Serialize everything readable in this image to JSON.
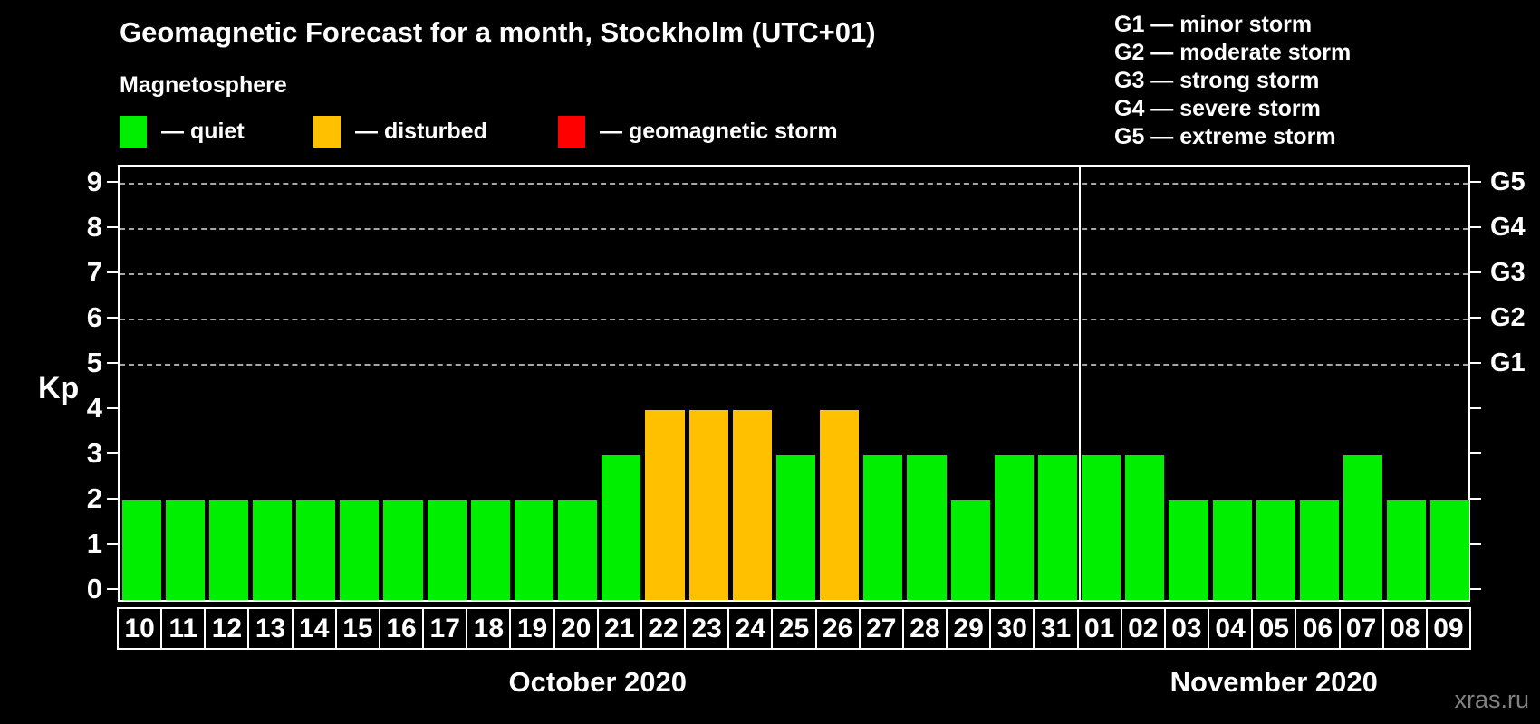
{
  "header": {
    "title": "Geomagnetic Forecast for a month, Stockholm (UTC+01)",
    "subtitle": "Magnetosphere",
    "legend": [
      {
        "key": "quiet",
        "label": "— quiet",
        "color": "#00EE00"
      },
      {
        "key": "disturbed",
        "label": "— disturbed",
        "color": "#FFC000"
      },
      {
        "key": "storm",
        "label": "— geomagnetic storm",
        "color": "#FF0000"
      }
    ],
    "g_legend": [
      "G1 — minor storm",
      "G2 — moderate storm",
      "G3 — strong storm",
      "G4 — severe storm",
      "G5 — extreme storm"
    ]
  },
  "chart_data": {
    "type": "bar",
    "title": "Geomagnetic Forecast for a month, Stockholm (UTC+01)",
    "ylabel": "Kp",
    "ylim": [
      0,
      9
    ],
    "yticks": [
      0,
      1,
      2,
      3,
      4,
      5,
      6,
      7,
      8,
      9
    ],
    "grid_levels": [
      5,
      6,
      7,
      8,
      9
    ],
    "grid_on": true,
    "right_axis_labels": [
      {
        "level": 5,
        "label": "G1"
      },
      {
        "level": 6,
        "label": "G2"
      },
      {
        "level": 7,
        "label": "G3"
      },
      {
        "level": 8,
        "label": "G4"
      },
      {
        "level": 9,
        "label": "G5"
      }
    ],
    "colors": {
      "quiet": "#00EE00",
      "disturbed": "#FFC000",
      "storm": "#FF0000"
    },
    "months": [
      {
        "label": "October 2020",
        "days": 22
      },
      {
        "label": "November 2020",
        "days": 9
      }
    ],
    "days": [
      {
        "date": "10",
        "kp": 2,
        "status": "quiet"
      },
      {
        "date": "11",
        "kp": 2,
        "status": "quiet"
      },
      {
        "date": "12",
        "kp": 2,
        "status": "quiet"
      },
      {
        "date": "13",
        "kp": 2,
        "status": "quiet"
      },
      {
        "date": "14",
        "kp": 2,
        "status": "quiet"
      },
      {
        "date": "15",
        "kp": 2,
        "status": "quiet"
      },
      {
        "date": "16",
        "kp": 2,
        "status": "quiet"
      },
      {
        "date": "17",
        "kp": 2,
        "status": "quiet"
      },
      {
        "date": "18",
        "kp": 2,
        "status": "quiet"
      },
      {
        "date": "19",
        "kp": 2,
        "status": "quiet"
      },
      {
        "date": "20",
        "kp": 2,
        "status": "quiet"
      },
      {
        "date": "21",
        "kp": 3,
        "status": "quiet"
      },
      {
        "date": "22",
        "kp": 4,
        "status": "disturbed"
      },
      {
        "date": "23",
        "kp": 4,
        "status": "disturbed"
      },
      {
        "date": "24",
        "kp": 4,
        "status": "disturbed"
      },
      {
        "date": "25",
        "kp": 3,
        "status": "quiet"
      },
      {
        "date": "26",
        "kp": 4,
        "status": "disturbed"
      },
      {
        "date": "27",
        "kp": 3,
        "status": "quiet"
      },
      {
        "date": "28",
        "kp": 3,
        "status": "quiet"
      },
      {
        "date": "29",
        "kp": 2,
        "status": "quiet"
      },
      {
        "date": "30",
        "kp": 3,
        "status": "quiet"
      },
      {
        "date": "31",
        "kp": 3,
        "status": "quiet"
      },
      {
        "date": "01",
        "kp": 3,
        "status": "quiet"
      },
      {
        "date": "02",
        "kp": 3,
        "status": "quiet"
      },
      {
        "date": "03",
        "kp": 2,
        "status": "quiet"
      },
      {
        "date": "04",
        "kp": 2,
        "status": "quiet"
      },
      {
        "date": "05",
        "kp": 2,
        "status": "quiet"
      },
      {
        "date": "06",
        "kp": 2,
        "status": "quiet"
      },
      {
        "date": "07",
        "kp": 3,
        "status": "quiet"
      },
      {
        "date": "08",
        "kp": 2,
        "status": "quiet"
      },
      {
        "date": "09",
        "kp": 2,
        "status": "quiet"
      }
    ]
  },
  "footer": {
    "watermark": "xras.ru"
  }
}
